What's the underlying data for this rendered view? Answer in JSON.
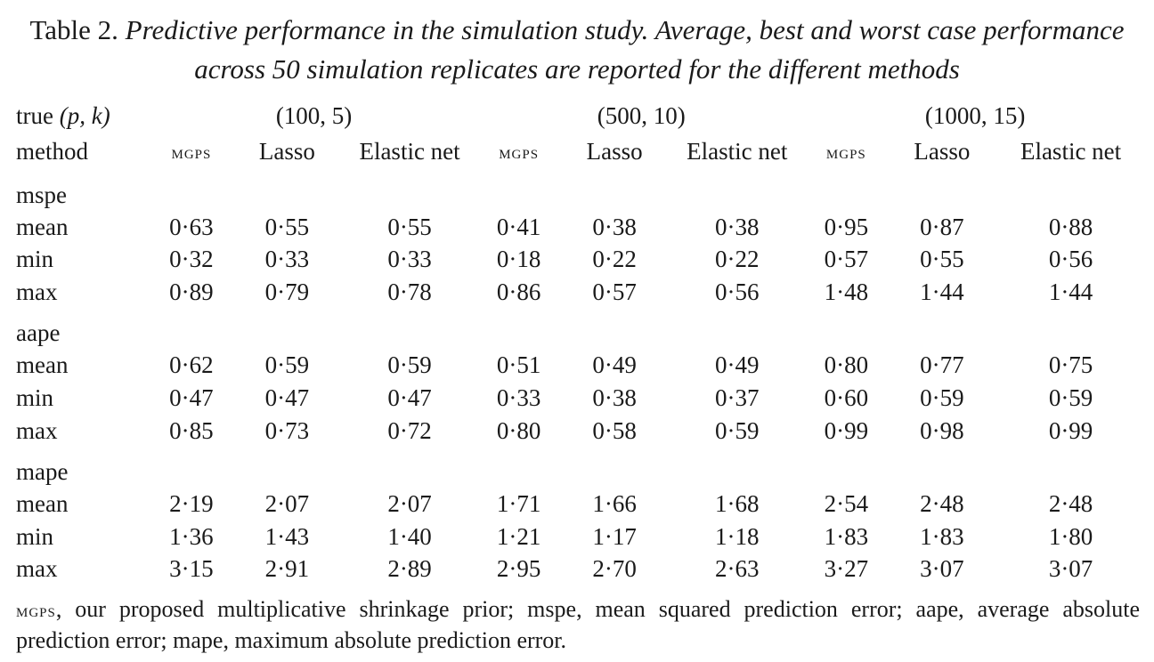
{
  "caption": {
    "lead": "Table 2.",
    "title": "Predictive performance in the simulation study. Average, best and worst case performance across 50 simulation replicates are reported for the different methods"
  },
  "header": {
    "true_label": "true",
    "pk_label": "(p, k)",
    "method_label": "method",
    "groups": [
      "(100, 5)",
      "(500, 10)",
      "(1000, 15)"
    ],
    "methods": [
      "mgps",
      "Lasso",
      "Elastic net"
    ]
  },
  "sections": [
    {
      "name": "mspe",
      "rows": [
        {
          "label": "mean",
          "values": [
            "0·63",
            "0·55",
            "0·55",
            "0·41",
            "0·38",
            "0·38",
            "0·95",
            "0·87",
            "0·88"
          ]
        },
        {
          "label": "min",
          "values": [
            "0·32",
            "0·33",
            "0·33",
            "0·18",
            "0·22",
            "0·22",
            "0·57",
            "0·55",
            "0·56"
          ]
        },
        {
          "label": "max",
          "values": [
            "0·89",
            "0·79",
            "0·78",
            "0·86",
            "0·57",
            "0·56",
            "1·48",
            "1·44",
            "1·44"
          ]
        }
      ]
    },
    {
      "name": "aape",
      "rows": [
        {
          "label": "mean",
          "values": [
            "0·62",
            "0·59",
            "0·59",
            "0·51",
            "0·49",
            "0·49",
            "0·80",
            "0·77",
            "0·75"
          ]
        },
        {
          "label": "min",
          "values": [
            "0·47",
            "0·47",
            "0·47",
            "0·33",
            "0·38",
            "0·37",
            "0·60",
            "0·59",
            "0·59"
          ]
        },
        {
          "label": "max",
          "values": [
            "0·85",
            "0·73",
            "0·72",
            "0·80",
            "0·58",
            "0·59",
            "0·99",
            "0·98",
            "0·99"
          ]
        }
      ]
    },
    {
      "name": "mape",
      "rows": [
        {
          "label": "mean",
          "values": [
            "2·19",
            "2·07",
            "2·07",
            "1·71",
            "1·66",
            "1·68",
            "2·54",
            "2·48",
            "2·48"
          ]
        },
        {
          "label": "min",
          "values": [
            "1·36",
            "1·43",
            "1·40",
            "1·21",
            "1·17",
            "1·18",
            "1·83",
            "1·83",
            "1·80"
          ]
        },
        {
          "label": "max",
          "values": [
            "3·15",
            "2·91",
            "2·89",
            "2·95",
            "2·70",
            "2·63",
            "3·27",
            "3·07",
            "3·07"
          ]
        }
      ]
    }
  ],
  "footnote": {
    "abbrev": "mgps",
    "text": ", our proposed multiplicative shrinkage prior; mspe, mean squared prediction error; aape, average absolute prediction error; mape, maximum absolute prediction error."
  }
}
